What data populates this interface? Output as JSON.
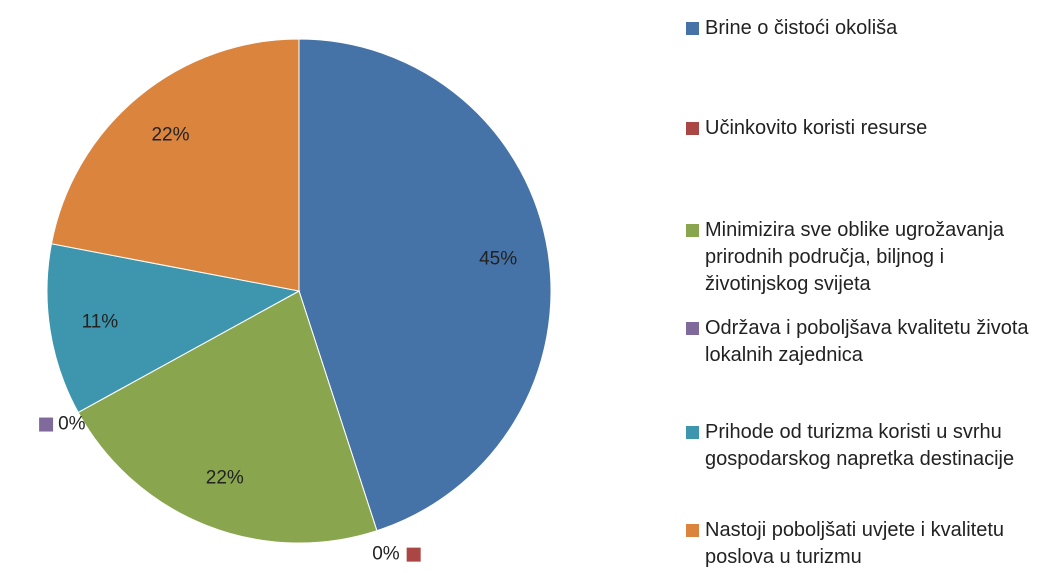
{
  "chart_data": {
    "type": "pie",
    "categories": [
      "Brine o čistoći okoliša",
      "Učinkovito koristi resurse",
      "Minimizira sve oblike ugrožavanja prirodnih područja, biljnog i životinjskog svijeta",
      "Održava i poboljšava kvalitetu života lokalnih zajednica",
      "Prihode od turizma koristi u svrhu gospodarskog napretka destinacije",
      "Nastoji poboljšati uvjete i kvalitetu poslova u turizmu"
    ],
    "values": [
      45,
      0,
      22,
      0,
      11,
      22
    ],
    "value_labels": [
      "45%",
      "0%",
      "22%",
      "0%",
      "11%",
      "22%"
    ],
    "colors": [
      "#4572a7",
      "#aa4643",
      "#89a54e",
      "#80699b",
      "#3d96ae",
      "#db843d"
    ],
    "legend": "right"
  }
}
